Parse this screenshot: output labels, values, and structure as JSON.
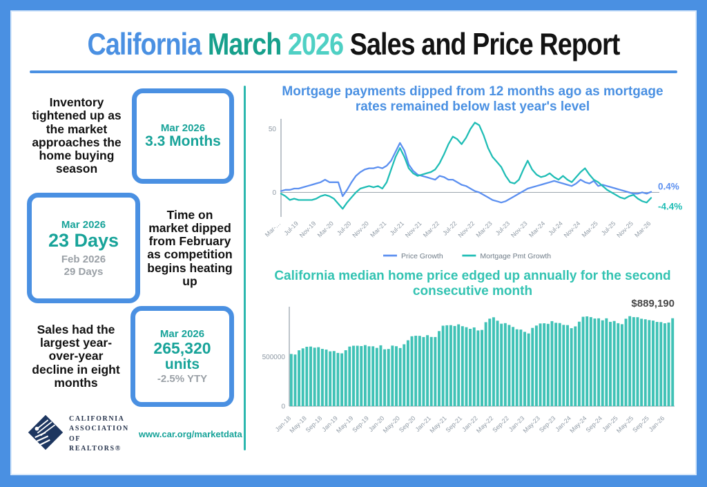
{
  "header": {
    "title_california": "California",
    "title_march": "March",
    "title_year": "2026",
    "title_rest": "Sales and Price Report"
  },
  "stats": [
    {
      "text": "Inventory tightened up as the market approaches the home buying season",
      "period": "Mar 2026",
      "value": "3.3 Months"
    },
    {
      "text": "Time on market dipped from February as competition begins heating up",
      "period": "Mar 2026",
      "value": "23 Days",
      "prev_period": "Feb 2026",
      "prev_value": "29 Days"
    },
    {
      "text": "Sales had the largest year-over-year decline in eight months",
      "period": "Mar 2026",
      "value": "265,320",
      "unit": "units",
      "sub_value": "-2.5% YTY"
    }
  ],
  "footer": {
    "logo_line1": "CALIFORNIA",
    "logo_line2": "ASSOCIATION",
    "logo_line3": "OF REALTORS®",
    "url": "www.car.org/marketdata"
  },
  "colors": {
    "frame_blue": "#4a90e2",
    "accent_teal": "#2bb7ae",
    "price_growth_blue": "#5b8ff0",
    "mortgage_growth_teal": "#1fbdb5",
    "bar_teal": "#40c2b6",
    "axis_gray": "#9aa5ae"
  },
  "chart_data": [
    {
      "type": "line",
      "title": "Mortgage payments dipped from 12 months ago as mortgage rates remained below last year's level",
      "months": [
        "Mar-19",
        "Apr-19",
        "May-19",
        "Jun-19",
        "Jul-19",
        "Aug-19",
        "Sep-19",
        "Oct-19",
        "Nov-19",
        "Dec-19",
        "Jan-20",
        "Feb-20",
        "Mar-20",
        "Apr-20",
        "May-20",
        "Jun-20",
        "Jul-20",
        "Aug-20",
        "Sep-20",
        "Oct-20",
        "Nov-20",
        "Dec-20",
        "Jan-21",
        "Feb-21",
        "Mar-21",
        "Apr-21",
        "May-21",
        "Jun-21",
        "Jul-21",
        "Aug-21",
        "Sep-21",
        "Oct-21",
        "Nov-21",
        "Dec-21",
        "Jan-22",
        "Feb-22",
        "Mar-22",
        "Apr-22",
        "May-22",
        "Jun-22",
        "Jul-22",
        "Aug-22",
        "Sep-22",
        "Oct-22",
        "Nov-22",
        "Dec-22",
        "Jan-23",
        "Feb-23",
        "Mar-23",
        "Apr-23",
        "May-23",
        "Jun-23",
        "Jul-23",
        "Aug-23",
        "Sep-23",
        "Oct-23",
        "Nov-23",
        "Dec-23",
        "Jan-24",
        "Feb-24",
        "Mar-24",
        "Apr-24",
        "May-24",
        "Jun-24",
        "Jul-24",
        "Aug-24",
        "Sep-24",
        "Oct-24",
        "Nov-24",
        "Dec-24",
        "Jan-25",
        "Feb-25",
        "Mar-25",
        "Apr-25",
        "May-25",
        "Jun-25",
        "Jul-25",
        "Aug-25",
        "Sep-25",
        "Oct-25",
        "Nov-25",
        "Dec-25",
        "Jan-26",
        "Feb-26",
        "Mar-26"
      ],
      "xtick_labels": [
        "Mar-…",
        "Jul-19",
        "Nov-19",
        "Mar-20",
        "Jul-20",
        "Nov-20",
        "Mar-21",
        "Jul-21",
        "Nov-21",
        "Mar-22",
        "Jul-22",
        "Nov-22",
        "Mar-23",
        "Jul-23",
        "Nov-23",
        "Mar-24",
        "Jul-24",
        "Nov-24",
        "Mar-25",
        "Jul-25",
        "Nov-25",
        "Mar-26"
      ],
      "tick_every": 4,
      "ylim": [
        -15,
        58
      ],
      "yticks": [
        50,
        0
      ],
      "series": [
        {
          "name": "Price Growth",
          "color": "#5b8ff0",
          "values": [
            1,
            2,
            2,
            3,
            3,
            4,
            5,
            6,
            7,
            8,
            10,
            8,
            8,
            8,
            -3,
            2,
            8,
            13,
            16,
            18,
            19,
            19,
            20,
            19,
            21,
            25,
            32,
            39,
            33,
            22,
            17,
            14,
            13,
            12,
            11,
            10,
            13,
            12,
            10,
            10,
            8,
            6,
            5,
            3,
            1,
            0,
            -2,
            -4,
            -6,
            -7,
            -8,
            -7,
            -5,
            -3,
            -1,
            1,
            3,
            4,
            5,
            6,
            7,
            8,
            9,
            8,
            7,
            6,
            5,
            7,
            10,
            8,
            7,
            9,
            5,
            6,
            5,
            4,
            3,
            2,
            1,
            0,
            -1,
            -1,
            0,
            -1,
            0.4
          ]
        },
        {
          "name": "Mortgage Pmt Growth",
          "color": "#1fbdb5",
          "values": [
            -1,
            -3,
            -6,
            -5,
            -6,
            -6,
            -6,
            -6,
            -5,
            -3,
            -2,
            -3,
            -5,
            -9,
            -13,
            -8,
            -4,
            0,
            3,
            4,
            5,
            4,
            5,
            3,
            8,
            18,
            28,
            35,
            28,
            19,
            15,
            13,
            14,
            15,
            16,
            18,
            23,
            30,
            38,
            44,
            42,
            38,
            43,
            50,
            55,
            53,
            45,
            35,
            28,
            24,
            20,
            13,
            8,
            7,
            10,
            18,
            25,
            18,
            14,
            12,
            13,
            15,
            12,
            10,
            13,
            10,
            8,
            12,
            16,
            19,
            14,
            10,
            8,
            5,
            2,
            0,
            -2,
            -4,
            -5,
            -3,
            -2,
            -5,
            -7,
            -8,
            -4.4
          ]
        }
      ],
      "annotations": [
        {
          "text": "0.4%",
          "series_index": 0
        },
        {
          "text": "-4.4%",
          "series_index": 1
        }
      ],
      "legend_position": "bottom-center",
      "grid": false
    },
    {
      "type": "bar",
      "title": "California median home price edged up annually for the second consecutive month",
      "months": [
        "Jan-18",
        "Feb-18",
        "Mar-18",
        "Apr-18",
        "May-18",
        "Jun-18",
        "Jul-18",
        "Aug-18",
        "Sep-18",
        "Oct-18",
        "Nov-18",
        "Dec-18",
        "Jan-19",
        "Feb-19",
        "Mar-19",
        "Apr-19",
        "May-19",
        "Jun-19",
        "Jul-19",
        "Aug-19",
        "Sep-19",
        "Oct-19",
        "Nov-19",
        "Dec-19",
        "Jan-20",
        "Feb-20",
        "Mar-20",
        "Apr-20",
        "May-20",
        "Jun-20",
        "Jul-20",
        "Aug-20",
        "Sep-20",
        "Oct-20",
        "Nov-20",
        "Dec-20",
        "Jan-21",
        "Feb-21",
        "Mar-21",
        "Apr-21",
        "May-21",
        "Jun-21",
        "Jul-21",
        "Aug-21",
        "Sep-21",
        "Oct-21",
        "Nov-21",
        "Dec-21",
        "Jan-22",
        "Feb-22",
        "Mar-22",
        "Apr-22",
        "May-22",
        "Jun-22",
        "Jul-22",
        "Aug-22",
        "Sep-22",
        "Oct-22",
        "Nov-22",
        "Dec-22",
        "Jan-23",
        "Feb-23",
        "Mar-23",
        "Apr-23",
        "May-23",
        "Jun-23",
        "Jul-23",
        "Aug-23",
        "Sep-23",
        "Oct-23",
        "Nov-23",
        "Dec-23",
        "Jan-24",
        "Feb-24",
        "Mar-24",
        "Apr-24",
        "May-24",
        "Jun-24",
        "Jul-24",
        "Aug-24",
        "Sep-24",
        "Oct-24",
        "Nov-24",
        "Dec-24",
        "Jan-25",
        "Feb-25",
        "Mar-25",
        "Apr-25",
        "May-25",
        "Jun-25",
        "Jul-25",
        "Aug-25",
        "Sep-25",
        "Oct-25",
        "Nov-25",
        "Dec-25",
        "Jan-26",
        "Feb-26",
        "Mar-26"
      ],
      "xtick_labels": [
        "Jan-18",
        "May-18",
        "Sep-18",
        "Jan-19",
        "May-19",
        "Sep-19",
        "Jan-20",
        "May-20",
        "Sep-20",
        "Jan-21",
        "May-21",
        "Sep-21",
        "Jan-22",
        "May-22",
        "Sep-22",
        "Jan-23",
        "May-23",
        "Sep-23",
        "Jan-24",
        "May-24",
        "Sep-24",
        "Jan-25",
        "May-25",
        "Sep-25",
        "Jan-26"
      ],
      "tick_every": 4,
      "ylim": [
        0,
        950000
      ],
      "yticks": [
        500000,
        0
      ],
      "values": [
        527800,
        522440,
        564830,
        584460,
        600860,
        602760,
        591460,
        596410,
        578850,
        572000,
        554760,
        557600,
        538690,
        534140,
        565880,
        602920,
        611190,
        611420,
        607990,
        617410,
        605680,
        605280,
        589770,
        615090,
        575160,
        578530,
        612440,
        606410,
        588070,
        626170,
        666320,
        706900,
        712430,
        711300,
        699000,
        717930,
        699890,
        699000,
        758990,
        813980,
        818260,
        819630,
        811170,
        827940,
        808890,
        798440,
        782480,
        796570,
        765580,
        771270,
        849080,
        884890,
        898980,
        863790,
        833910,
        839460,
        821680,
        801190,
        777500,
        774580,
        751330,
        735480,
        791490,
        815340,
        836110,
        838260,
        832340,
        859800,
        843340,
        840360,
        822200,
        819740,
        788940,
        806490,
        854490,
        904210,
        908040,
        900720,
        886560,
        888740,
        868150,
        888660,
        852880,
        861020,
        838850,
        829060,
        884350,
        910160,
        900170,
        899560,
        884050,
        878480,
        870500,
        865200,
        852300,
        850100,
        838200,
        846100,
        889190
      ],
      "annotation": "$889,190",
      "bar_color": "#40c2b6",
      "grid": false
    }
  ]
}
